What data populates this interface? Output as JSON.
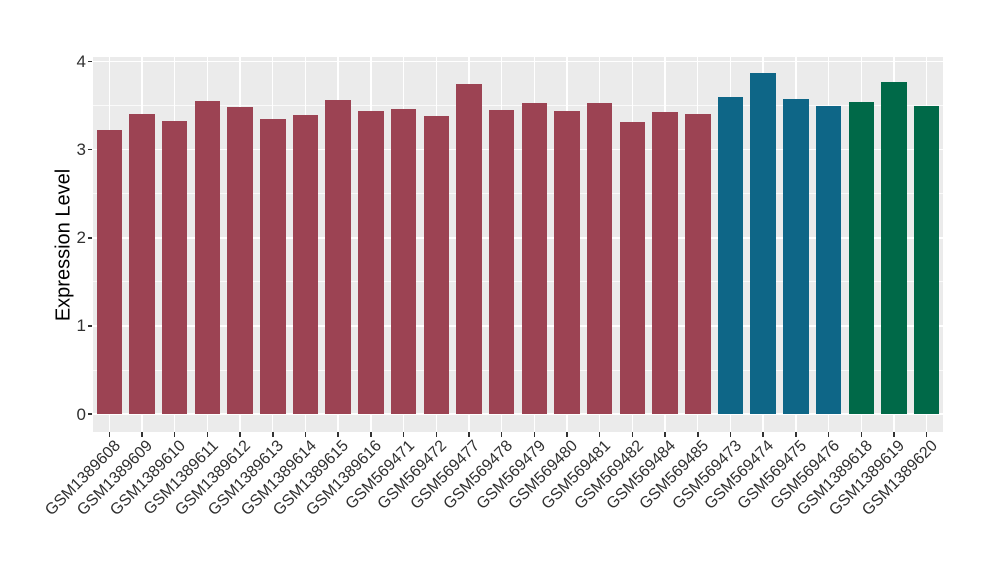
{
  "chart_data": {
    "type": "bar",
    "title": "",
    "xlabel": "",
    "ylabel": "Expression Level",
    "ylim": [
      0,
      4.06
    ],
    "yticks": [
      0,
      1,
      2,
      3,
      4
    ],
    "y_minor_ticks": [
      0.5,
      1.5,
      2.5,
      3.5
    ],
    "grid": "white major+minor horizontal lines and vertical category lines on grey panel",
    "legend_position": "none",
    "categories": [
      "GSM1389608",
      "GSM1389609",
      "GSM1389610",
      "GSM1389611",
      "GSM1389612",
      "GSM1389613",
      "GSM1389614",
      "GSM1389615",
      "GSM1389616",
      "GSM569471",
      "GSM569472",
      "GSM569477",
      "GSM569478",
      "GSM569479",
      "GSM569480",
      "GSM569481",
      "GSM569482",
      "GSM569484",
      "GSM569485",
      "GSM569473",
      "GSM569474",
      "GSM569475",
      "GSM569476",
      "GSM1389618",
      "GSM1389619",
      "GSM1389620"
    ],
    "values": [
      3.22,
      3.4,
      3.33,
      3.55,
      3.48,
      3.35,
      3.39,
      3.56,
      3.44,
      3.46,
      3.38,
      3.75,
      3.45,
      3.53,
      3.44,
      3.53,
      3.31,
      3.43,
      3.4,
      3.6,
      3.87,
      3.57,
      3.5,
      3.54,
      3.77,
      3.5
    ],
    "palette": [
      "#9c4353",
      "#0e6687",
      "#006948"
    ],
    "color_index": [
      0,
      0,
      0,
      0,
      0,
      0,
      0,
      0,
      0,
      0,
      0,
      0,
      0,
      0,
      0,
      0,
      0,
      0,
      0,
      1,
      1,
      1,
      1,
      2,
      2,
      2
    ]
  },
  "style": {
    "panel_bg": "#ebebeb",
    "grid_color": "#ffffff",
    "tick_color": "#333333",
    "axis_text_color": "#303030",
    "axis_title_color": "#000000",
    "background": "#ffffff"
  }
}
